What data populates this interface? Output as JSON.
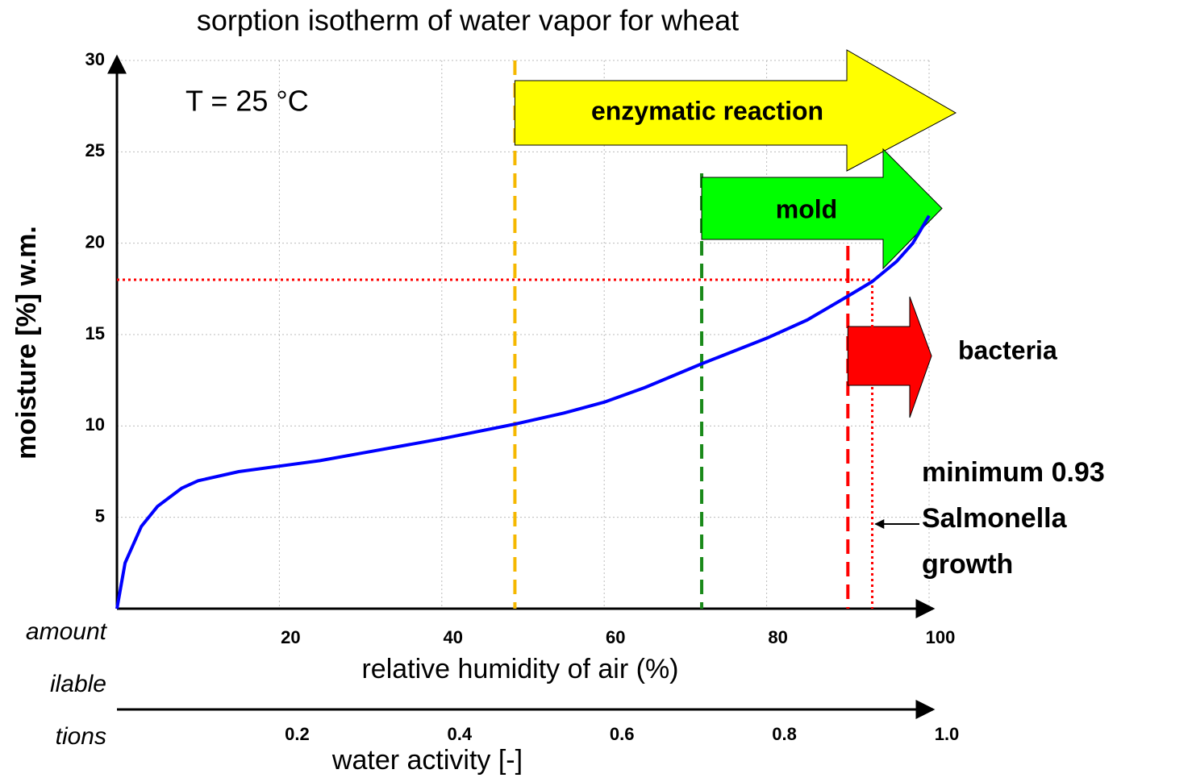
{
  "chart_data": {
    "type": "line",
    "title": "sorption isotherm of water vapor for wheat",
    "annotation": "T = 25 °C",
    "xlabel": "relative humidity of air (%)",
    "ylabel": "moisture [%] w.m.",
    "x2label": "water activity [-]",
    "side_text": [
      "amount",
      "ilable",
      "tions"
    ],
    "x": [
      0,
      1,
      3,
      5,
      8,
      10,
      15,
      20,
      25,
      30,
      40,
      49,
      55,
      60,
      65,
      72,
      80,
      85,
      90,
      93,
      96,
      98,
      100
    ],
    "series": [
      {
        "color": "#0000ff",
        "values": [
          0,
          2.5,
          4.5,
          5.6,
          6.6,
          7.0,
          7.5,
          7.8,
          8.1,
          8.5,
          9.3,
          10.1,
          10.7,
          11.3,
          12.1,
          13.4,
          14.8,
          15.8,
          17.1,
          17.9,
          19.0,
          20.0,
          21.5
        ]
      }
    ],
    "xlim": [
      0,
      100
    ],
    "xticks": [
      20,
      40,
      60,
      80,
      100
    ],
    "x2lim": [
      0,
      1
    ],
    "x2ticks": [
      0.2,
      0.4,
      0.6,
      0.8,
      {
        "value": 1,
        "label": "1.0"
      }
    ],
    "ylim": [
      0,
      30
    ],
    "yticks": [
      5,
      10,
      15,
      20,
      25,
      30
    ],
    "grid": true,
    "regions": [
      {
        "label": "enzymatic reaction",
        "x": 49,
        "color": "#ffff00",
        "line_color": "#f5b800"
      },
      {
        "label": "mold",
        "x": 72,
        "color": "#00ff00",
        "line_color": "#1a8a1a"
      },
      {
        "label": "bacteria",
        "x": 90,
        "color": "#ff0000",
        "line_color": "#ff0000"
      }
    ],
    "salmonella": {
      "x": 93,
      "y": 18,
      "color": "#ff0000",
      "label": [
        "minimum 0.93",
        "Salmonella",
        "growth"
      ]
    }
  }
}
